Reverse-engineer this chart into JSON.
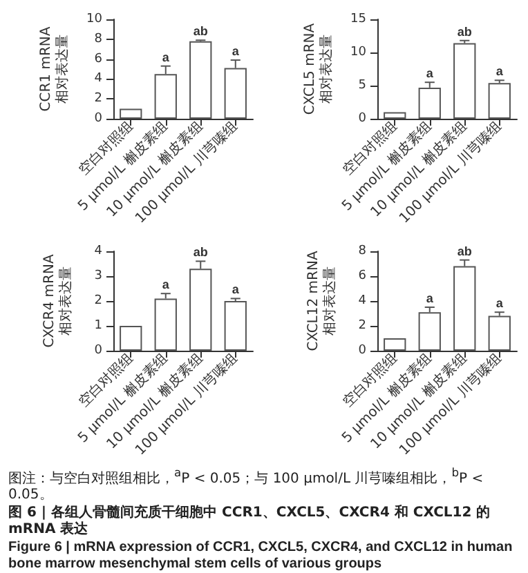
{
  "chart_data": [
    {
      "type": "bar",
      "ylabel": "CCR1 mRNA 相对表达量",
      "categories": [
        "空白对照组",
        "5 μmol/L 槲皮素组",
        "10 μmol/L 槲皮素组",
        "100 μmol/L 川芎嗪组"
      ],
      "color": "#ffffff",
      "values": [
        1,
        4.5,
        7.8,
        5.1
      ],
      "errors": [
        null,
        [
          4.5,
          5.3
        ],
        [
          7.8,
          7.9
        ],
        [
          5.1,
          5.9
        ]
      ],
      "value_labels": [
        null,
        "a",
        "ab",
        "a"
      ],
      "ylim": [
        0,
        10
      ],
      "yticks": [
        0,
        2,
        4,
        6,
        8,
        10
      ]
    },
    {
      "type": "bar",
      "ylabel": "CXCL5 mRNA 相对表达量",
      "categories": [
        "空白对照组",
        "5 μmol/L 槲皮素组",
        "10 μmol/L 槲皮素组",
        "100 μmol/L 川芎嗪组"
      ],
      "color": "#ffffff",
      "values": [
        1,
        4.7,
        11.4,
        5.4
      ],
      "errors": [
        null,
        [
          4.7,
          5.5
        ],
        [
          11.4,
          11.8
        ],
        [
          5.4,
          5.8
        ]
      ],
      "value_labels": [
        null,
        "a",
        "ab",
        "a"
      ],
      "ylim": [
        0,
        15
      ],
      "yticks": [
        0,
        5,
        10,
        15
      ]
    },
    {
      "type": "bar",
      "ylabel": "CXCR4 mRNA 相对表达量",
      "categories": [
        "空白对照组",
        "5 μmol/L 槲皮素组",
        "10 μmol/L 槲皮素组",
        "100 μmol/L 川芎嗪组"
      ],
      "color": "#ffffff",
      "values": [
        1,
        2.1,
        3.3,
        2.0
      ],
      "errors": [
        null,
        [
          2.1,
          2.3
        ],
        [
          3.3,
          3.6
        ],
        [
          2.0,
          2.1
        ]
      ],
      "value_labels": [
        null,
        "a",
        "ab",
        "a"
      ],
      "ylim": [
        0,
        4
      ],
      "yticks": [
        0,
        1,
        2,
        3,
        4
      ]
    },
    {
      "type": "bar",
      "ylabel": "CXCL12 mRNA 相对表达量",
      "categories": [
        "空白对照组",
        "5 μmol/L 槲皮素组",
        "10 μmol/L 槲皮素组",
        "100 μmol/L 川芎嗪组"
      ],
      "color": "#ffffff",
      "values": [
        1,
        3.1,
        6.8,
        2.8
      ],
      "errors": [
        null,
        [
          3.1,
          3.5
        ],
        [
          6.8,
          7.3
        ],
        [
          2.8,
          3.1
        ]
      ],
      "value_labels": [
        null,
        "a",
        "ab",
        "a"
      ],
      "ylim": [
        0,
        8
      ],
      "yticks": [
        0,
        2,
        4,
        6,
        8
      ]
    },
    {
      "type": "other",
      "annotations": [
        "图注：与空白对照组相比，$^{a}$P < 0.05；与 100 μmol/L 川芎嗪组相比，$^{b}$P < 0.05。"
      ],
      "title": "图 6 | 各组人骨髓间充质干细胞中 CCR1、CXCL5、CXCR4 和 CXCL12 的 mRNA 表达",
      "subtitle": "Figure 6 | mRNA expression of CCR1, CXCL5, CXCR4, and CXCL12 in human bone marrow mesenchymal stem cells of various groups"
    }
  ]
}
